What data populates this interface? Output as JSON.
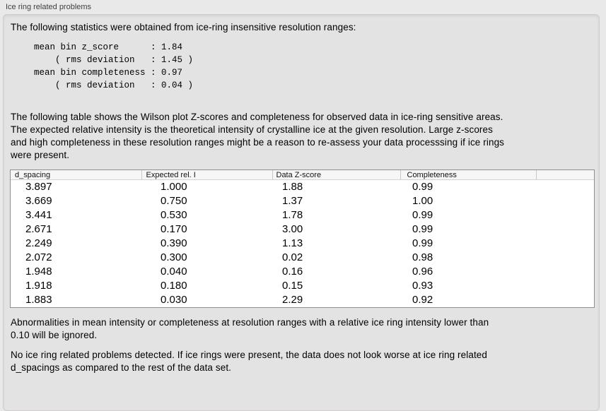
{
  "panel": {
    "title": "Ice ring related problems"
  },
  "intro": "The following statistics were obtained from ice-ring insensitive resolution ranges:",
  "stats": {
    "text": "mean bin z_score      : 1.84\n    ( rms deviation   : 1.45 )\nmean bin completeness : 0.97\n    ( rms deviation   : 0.04 )",
    "mean_bin_z_score": "1.84",
    "z_score_rms_deviation": "1.45",
    "mean_bin_completeness": "0.97",
    "completeness_rms_deviation": "0.04"
  },
  "description": "The following table shows the Wilson plot Z-scores and completeness for observed data in ice-ring sensitive areas.\nThe expected relative intensity is the theoretical intensity of crystalline ice at the given resolution. Large z-scores\nand high completeness in these resolution ranges might be a reason to re-assess your data processsing if ice rings\nwere present.",
  "table": {
    "headers": [
      "d_spacing",
      "Expected rel. I",
      "Data Z-score",
      "Completeness"
    ],
    "rows": [
      [
        "3.897",
        "1.000",
        "1.88",
        "0.99"
      ],
      [
        "3.669",
        "0.750",
        "1.37",
        "1.00"
      ],
      [
        "3.441",
        "0.530",
        "1.78",
        "0.99"
      ],
      [
        "2.671",
        "0.170",
        "3.00",
        "0.99"
      ],
      [
        "2.249",
        "0.390",
        "1.13",
        "0.99"
      ],
      [
        "2.072",
        "0.300",
        "0.02",
        "0.98"
      ],
      [
        "1.948",
        "0.040",
        "0.16",
        "0.96"
      ],
      [
        "1.918",
        "0.180",
        "0.15",
        "0.93"
      ],
      [
        "1.883",
        "0.030",
        "2.29",
        "0.92"
      ]
    ]
  },
  "notes": {
    "ignore": "Abnormalities in mean intensity or completeness at resolution ranges with a relative ice ring intensity lower than\n0.10 will be ignored.",
    "result": "No ice ring related problems detected. If ice rings were present, the data does not look worse at ice ring related\nd_spacings as compared to the rest of the data set."
  },
  "colors": {
    "page_bg": "#e9e9e9",
    "panel_bg": "#e3e3e3",
    "panel_border": "#cecccc",
    "table_border": "#8f8f8f",
    "table_header_bg": "#f6f6f6",
    "text": "#000000"
  }
}
